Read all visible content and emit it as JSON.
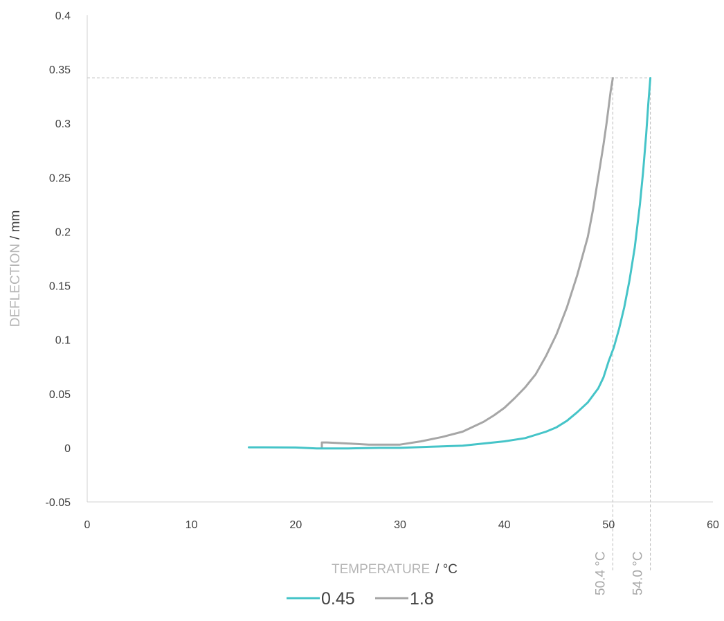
{
  "chart_data": {
    "type": "line",
    "xlabel": "TEMPERATURE",
    "xunit": "/ °C",
    "ylabel": "DEFLECTION",
    "yunit": "/ mm",
    "xlim": [
      0,
      60
    ],
    "ylim": [
      -0.05,
      0.4
    ],
    "xticks": [
      "0",
      "10",
      "20",
      "30",
      "40",
      "50",
      "60"
    ],
    "yticks": [
      "-0.05",
      "0",
      "0.05",
      "0.1",
      "0.15",
      "0.2",
      "0.25",
      "0.3",
      "0.35",
      "0.4"
    ],
    "grid": false,
    "legend_position": "bottom",
    "series": [
      {
        "name": "0.45",
        "color": "#45c4c8",
        "x": [
          15.5,
          17,
          20,
          22,
          25,
          28,
          30,
          33,
          36,
          38,
          40,
          42,
          44,
          45,
          46,
          47,
          48,
          49,
          49.5,
          50,
          50.5,
          51,
          51.5,
          52,
          52.5,
          53,
          53.3,
          53.6,
          53.8,
          54.0
        ],
        "y": [
          0.0005,
          0.0005,
          0.0003,
          -0.0005,
          -0.0005,
          0.0,
          0.0,
          0.001,
          0.002,
          0.004,
          0.006,
          0.009,
          0.015,
          0.019,
          0.025,
          0.033,
          0.042,
          0.055,
          0.065,
          0.08,
          0.093,
          0.11,
          0.13,
          0.155,
          0.185,
          0.225,
          0.255,
          0.29,
          0.318,
          0.342
        ]
      },
      {
        "name": "1.8",
        "color": "#a6a6a6",
        "x": [
          22.5,
          22.5,
          23,
          25,
          27,
          29,
          30,
          32,
          34,
          36,
          38,
          39,
          40,
          41,
          42,
          43,
          44,
          45,
          46,
          47,
          48,
          48.5,
          49,
          49.5,
          49.8,
          50.0,
          50.2,
          50.4
        ],
        "y": [
          0.0,
          0.005,
          0.005,
          0.004,
          0.003,
          0.003,
          0.003,
          0.006,
          0.01,
          0.015,
          0.024,
          0.03,
          0.037,
          0.046,
          0.056,
          0.068,
          0.085,
          0.105,
          0.13,
          0.16,
          0.195,
          0.22,
          0.25,
          0.28,
          0.3,
          0.315,
          0.33,
          0.342
        ]
      }
    ],
    "annotations": [
      {
        "text": "50.4 °C",
        "x": 50.4,
        "y": 0.342
      },
      {
        "text": "54.0 °C",
        "x": 54.0,
        "y": 0.342
      }
    ]
  }
}
